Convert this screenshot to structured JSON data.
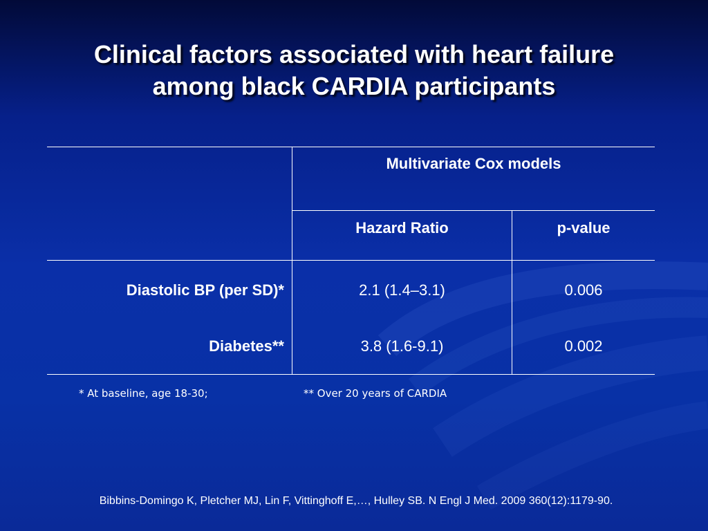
{
  "slide": {
    "title_line1": "Clinical factors associated with heart failure",
    "title_line2": "among black CARDIA participants"
  },
  "table": {
    "group_header": "Multivariate Cox models",
    "col_hazard": "Hazard Ratio",
    "col_pvalue": "p-value",
    "rows": [
      {
        "factor": "Diastolic BP (per SD)*",
        "hazard_ratio": "2.1 (1.4–3.1)",
        "p_value": "0.006"
      },
      {
        "factor": "Diabetes**",
        "hazard_ratio": "3.8 (1.6-9.1)",
        "p_value": "0.002"
      }
    ]
  },
  "footnotes": {
    "note1": "* At baseline, age 18-30;",
    "note2": "** Over 20 years of CARDIA"
  },
  "citation": "Bibbins-Domingo K, Pletcher MJ, Lin F, Vittinghoff E,…, Hulley SB. N Engl J Med. 2009 360(12):1179-90.",
  "colors": {
    "background_top": "#020a38",
    "background_main": "#0a2fa8",
    "text": "#ffffff"
  }
}
